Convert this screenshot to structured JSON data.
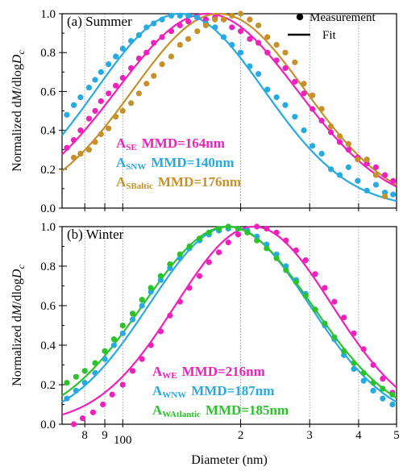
{
  "chart_data": [
    {
      "type": "scatter",
      "panel": "(a)",
      "title": "(a) Summer",
      "xlabel": "",
      "ylabel": "Normalized dM/dlogD_c",
      "x_scale": "log",
      "xlim": [
        70,
        500
      ],
      "ylim": [
        0,
        1.0
      ],
      "x_ticks": [
        80,
        90,
        100,
        200,
        300,
        400,
        500
      ],
      "x_tick_labels": [
        "8",
        "9",
        "100",
        "2",
        "3",
        "4",
        "5"
      ],
      "y_ticks": [
        0,
        0.2,
        0.4,
        0.6,
        0.8,
        1.0
      ],
      "y_tick_labels": [
        "0.0",
        "0.2",
        "0.4",
        "0.6",
        "0.8",
        "1.0"
      ],
      "top_legend": {
        "marker_label": "Measurement",
        "line_label": "Fit"
      },
      "series": [
        {
          "name": "A_SE",
          "label_main": "A",
          "label_sub": "SE",
          "label_value": "MMD=164nm",
          "color": "#ee22bb",
          "mmd": 164,
          "sigma": 1.7,
          "points": [
            [
              72,
              0.31
            ],
            [
              75,
              0.35
            ],
            [
              78,
              0.4
            ],
            [
              82,
              0.46
            ],
            [
              85,
              0.5
            ],
            [
              88,
              0.55
            ],
            [
              92,
              0.59
            ],
            [
              96,
              0.63
            ],
            [
              100,
              0.67
            ],
            [
              105,
              0.72
            ],
            [
              110,
              0.77
            ],
            [
              115,
              0.8
            ],
            [
              120,
              0.85
            ],
            [
              126,
              0.88
            ],
            [
              133,
              0.91
            ],
            [
              140,
              0.94
            ],
            [
              147,
              0.96
            ],
            [
              155,
              0.98
            ],
            [
              163,
              0.97
            ],
            [
              172,
              0.98
            ],
            [
              181,
              0.97
            ],
            [
              190,
              0.93
            ],
            [
              200,
              0.91
            ],
            [
              211,
              0.87
            ],
            [
              222,
              0.85
            ],
            [
              234,
              0.8
            ],
            [
              247,
              0.76
            ],
            [
              260,
              0.72
            ],
            [
              275,
              0.65
            ],
            [
              290,
              0.59
            ],
            [
              305,
              0.51
            ],
            [
              322,
              0.45
            ],
            [
              340,
              0.39
            ],
            [
              358,
              0.34
            ],
            [
              377,
              0.3
            ],
            [
              398,
              0.26
            ],
            [
              420,
              0.23
            ],
            [
              443,
              0.21
            ],
            [
              467,
              0.17
            ],
            [
              490,
              0.14
            ]
          ]
        },
        {
          "name": "A_SNW",
          "label_main": "A",
          "label_sub": "SNW",
          "label_value": "MMD=140nm",
          "color": "#27aae1",
          "mmd": 140,
          "sigma": 1.64,
          "points": [
            [
              72,
              0.48
            ],
            [
              75,
              0.53
            ],
            [
              78,
              0.57
            ],
            [
              82,
              0.62
            ],
            [
              85,
              0.66
            ],
            [
              88,
              0.7
            ],
            [
              92,
              0.74
            ],
            [
              96,
              0.78
            ],
            [
              100,
              0.82
            ],
            [
              105,
              0.86
            ],
            [
              110,
              0.89
            ],
            [
              115,
              0.93
            ],
            [
              120,
              0.95
            ],
            [
              126,
              0.97
            ],
            [
              133,
              0.99
            ],
            [
              140,
              0.99
            ],
            [
              147,
              0.99
            ],
            [
              155,
              0.98
            ],
            [
              163,
              0.95
            ],
            [
              172,
              0.93
            ],
            [
              181,
              0.88
            ],
            [
              190,
              0.84
            ],
            [
              200,
              0.8
            ],
            [
              211,
              0.73
            ],
            [
              222,
              0.69
            ],
            [
              234,
              0.61
            ],
            [
              247,
              0.57
            ],
            [
              260,
              0.53
            ],
            [
              275,
              0.47
            ],
            [
              290,
              0.4
            ],
            [
              305,
              0.32
            ],
            [
              322,
              0.28
            ],
            [
              340,
              0.2
            ],
            [
              358,
              0.17
            ],
            [
              377,
              0.21
            ],
            [
              398,
              0.14
            ],
            [
              420,
              0.09
            ],
            [
              443,
              0.12
            ],
            [
              467,
              0.08
            ],
            [
              490,
              0.07
            ]
          ]
        },
        {
          "name": "A_SBaltic",
          "label_main": "A",
          "label_sub": "SBaltic",
          "label_value": "MMD=176nm",
          "color": "#c5912a",
          "mmd": 176,
          "sigma": 1.66,
          "points": [
            [
              75,
              0.26
            ],
            [
              78,
              0.28
            ],
            [
              82,
              0.3
            ],
            [
              85,
              0.34
            ],
            [
              88,
              0.38
            ],
            [
              92,
              0.41
            ],
            [
              96,
              0.47
            ],
            [
              100,
              0.5
            ],
            [
              105,
              0.54
            ],
            [
              110,
              0.59
            ],
            [
              115,
              0.64
            ],
            [
              120,
              0.68
            ],
            [
              126,
              0.74
            ],
            [
              133,
              0.78
            ],
            [
              140,
              0.84
            ],
            [
              147,
              0.87
            ],
            [
              155,
              0.91
            ],
            [
              163,
              0.94
            ],
            [
              172,
              0.97
            ],
            [
              181,
              0.97
            ],
            [
              190,
              0.99
            ],
            [
              200,
              1.0
            ],
            [
              211,
              0.97
            ],
            [
              222,
              0.94
            ],
            [
              234,
              0.88
            ],
            [
              247,
              0.84
            ],
            [
              260,
              0.8
            ],
            [
              275,
              0.75
            ],
            [
              290,
              0.64
            ],
            [
              305,
              0.58
            ],
            [
              322,
              0.51
            ],
            [
              340,
              0.42
            ],
            [
              358,
              0.37
            ],
            [
              377,
              0.33
            ],
            [
              398,
              0.25
            ],
            [
              420,
              0.25
            ],
            [
              443,
              0.17
            ],
            [
              467,
              0.06
            ]
          ]
        }
      ]
    },
    {
      "type": "scatter",
      "panel": "(b)",
      "title": "(b) Winter",
      "xlabel": "Diameter (nm)",
      "ylabel": "Normalized dM/dlogD_c",
      "x_scale": "log",
      "xlim": [
        70,
        500
      ],
      "ylim": [
        0,
        1.0
      ],
      "x_ticks": [
        80,
        90,
        100,
        200,
        300,
        400,
        500
      ],
      "x_tick_labels": [
        "8",
        "9",
        "100",
        "2",
        "3",
        "4",
        "5"
      ],
      "y_ticks": [
        0,
        0.2,
        0.4,
        0.6,
        0.8,
        1.0
      ],
      "y_tick_labels": [
        "0.0",
        "0.2",
        "0.4",
        "0.6",
        "0.8",
        "1.0"
      ],
      "series": [
        {
          "name": "A_WE",
          "label_main": "A",
          "label_sub": "WE",
          "label_value": "MMD=216nm",
          "color": "#ee22bb",
          "mmd": 216,
          "sigma": 1.58,
          "points": [
            [
              75,
              0.0
            ],
            [
              79,
              0.03
            ],
            [
              84,
              0.06
            ],
            [
              89,
              0.1
            ],
            [
              94,
              0.15
            ],
            [
              100,
              0.2
            ],
            [
              106,
              0.27
            ],
            [
              112,
              0.33
            ],
            [
              118,
              0.4
            ],
            [
              125,
              0.47
            ],
            [
              132,
              0.55
            ],
            [
              140,
              0.62
            ],
            [
              148,
              0.69
            ],
            [
              157,
              0.75
            ],
            [
              166,
              0.82
            ],
            [
              176,
              0.87
            ],
            [
              186,
              0.92
            ],
            [
              197,
              0.96
            ],
            [
              208,
              0.98
            ],
            [
              220,
              1.0
            ],
            [
              233,
              0.99
            ],
            [
              247,
              0.97
            ],
            [
              261,
              0.93
            ],
            [
              277,
              0.88
            ],
            [
              293,
              0.83
            ],
            [
              310,
              0.76
            ],
            [
              328,
              0.69
            ],
            [
              347,
              0.62
            ],
            [
              367,
              0.54
            ],
            [
              389,
              0.46
            ],
            [
              412,
              0.38
            ],
            [
              436,
              0.3
            ],
            [
              461,
              0.23
            ],
            [
              488,
              0.16
            ]
          ]
        },
        {
          "name": "A_WNW",
          "label_main": "A",
          "label_sub": "WNW",
          "label_value": "MMD=187nm",
          "color": "#27aae1",
          "mmd": 187,
          "sigma": 1.6,
          "points": [
            [
              72,
              0.13
            ],
            [
              76,
              0.17
            ],
            [
              80,
              0.21
            ],
            [
              85,
              0.26
            ],
            [
              90,
              0.33
            ],
            [
              95,
              0.4
            ],
            [
              100,
              0.46
            ],
            [
              106,
              0.53
            ],
            [
              112,
              0.6
            ],
            [
              118,
              0.67
            ],
            [
              125,
              0.73
            ],
            [
              132,
              0.79
            ],
            [
              140,
              0.84
            ],
            [
              148,
              0.89
            ],
            [
              157,
              0.93
            ],
            [
              166,
              0.96
            ],
            [
              176,
              0.98
            ],
            [
              186,
              0.99
            ],
            [
              197,
              0.99
            ],
            [
              208,
              0.98
            ],
            [
              220,
              0.95
            ],
            [
              233,
              0.91
            ],
            [
              247,
              0.86
            ],
            [
              261,
              0.8
            ],
            [
              277,
              0.73
            ],
            [
              293,
              0.66
            ],
            [
              310,
              0.58
            ],
            [
              328,
              0.5
            ],
            [
              347,
              0.43
            ],
            [
              367,
              0.35
            ],
            [
              389,
              0.28
            ],
            [
              412,
              0.22
            ],
            [
              436,
              0.17
            ],
            [
              461,
              0.13
            ],
            [
              488,
              0.1
            ]
          ]
        },
        {
          "name": "A_WAtlantic",
          "label_main": "A",
          "label_sub": "WAtlantic",
          "label_value": "MMD=185nm",
          "color": "#2cc22c",
          "mmd": 185,
          "sigma": 1.64,
          "points": [
            [
              72,
              0.21
            ],
            [
              76,
              0.24
            ],
            [
              80,
              0.27
            ],
            [
              85,
              0.31
            ],
            [
              90,
              0.37
            ],
            [
              95,
              0.43
            ],
            [
              100,
              0.5
            ],
            [
              106,
              0.56
            ],
            [
              112,
              0.63
            ],
            [
              118,
              0.69
            ],
            [
              125,
              0.75
            ],
            [
              132,
              0.81
            ],
            [
              140,
              0.86
            ],
            [
              148,
              0.9
            ],
            [
              157,
              0.94
            ],
            [
              166,
              0.97
            ],
            [
              176,
              0.99
            ],
            [
              186,
              1.0
            ],
            [
              197,
              0.99
            ],
            [
              208,
              0.97
            ],
            [
              220,
              0.93
            ],
            [
              233,
              0.89
            ],
            [
              247,
              0.84
            ],
            [
              261,
              0.78
            ],
            [
              277,
              0.72
            ],
            [
              293,
              0.65
            ],
            [
              310,
              0.58
            ],
            [
              328,
              0.51
            ],
            [
              347,
              0.44
            ],
            [
              367,
              0.37
            ],
            [
              389,
              0.31
            ],
            [
              412,
              0.26
            ],
            [
              436,
              0.21
            ],
            [
              461,
              0.18
            ],
            [
              488,
              0.15
            ]
          ]
        }
      ]
    }
  ]
}
